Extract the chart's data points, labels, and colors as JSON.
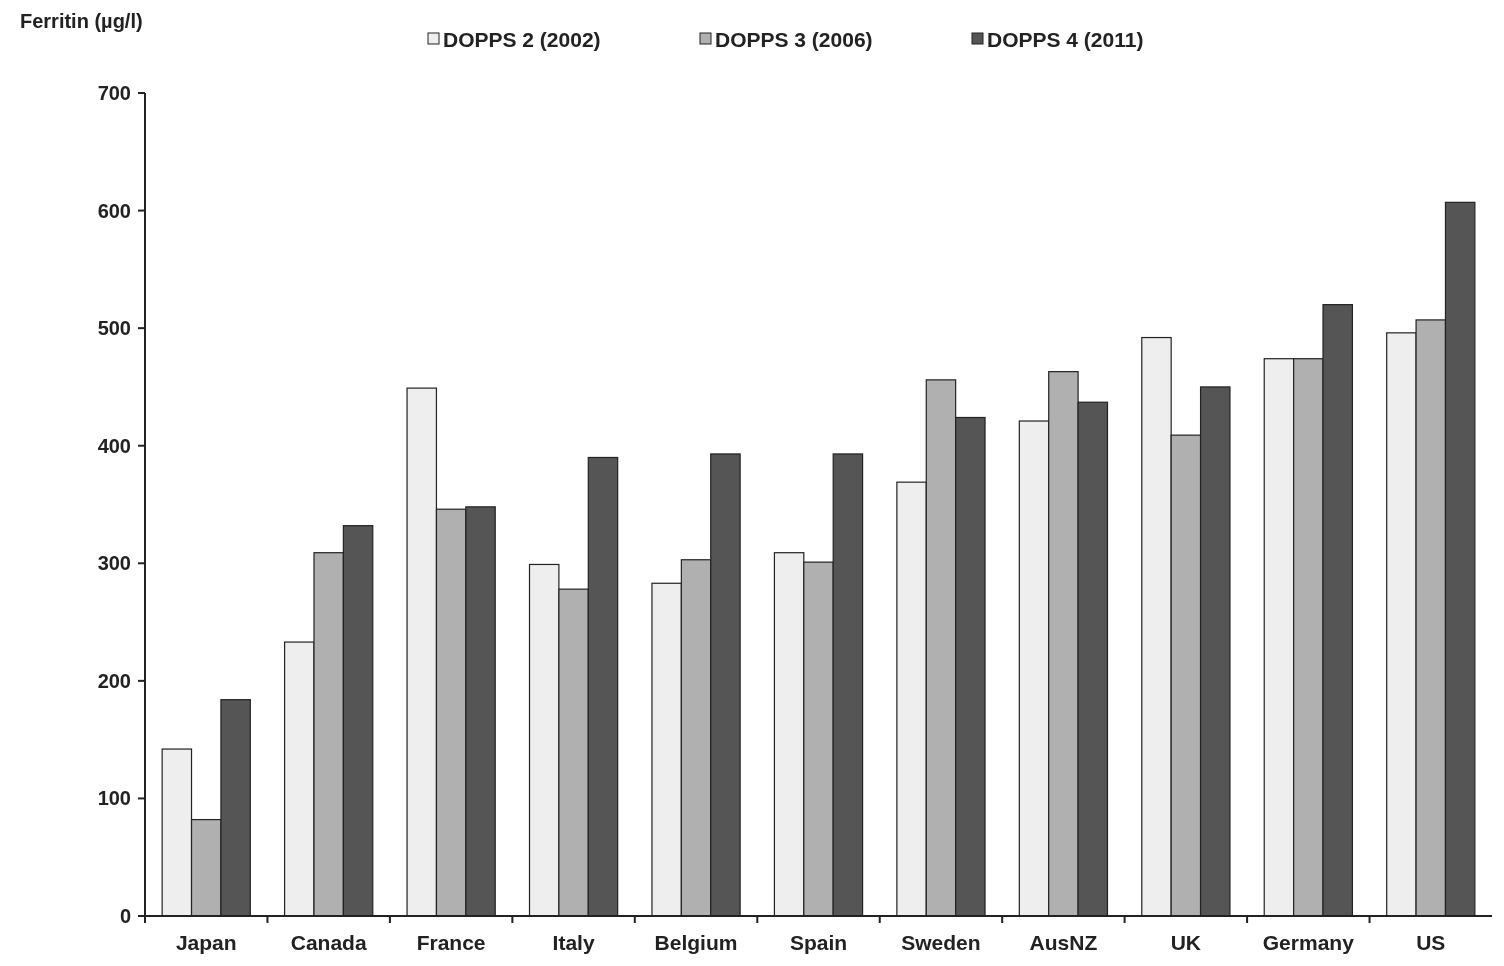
{
  "chart_data": {
    "type": "bar",
    "ylabel": "Ferritin (µg/l)",
    "categories": [
      "Japan",
      "Canada",
      "France",
      "Italy",
      "Belgium",
      "Spain",
      "Sweden",
      "AusNZ",
      "UK",
      "Germany",
      "US"
    ],
    "series": [
      {
        "name": "DOPPS 2 (2002)",
        "color": "#eeeeee",
        "values": [
          142,
          233,
          449,
          299,
          283,
          309,
          369,
          421,
          492,
          474,
          496
        ]
      },
      {
        "name": "DOPPS 3 (2006)",
        "color": "#b0b0b0",
        "values": [
          82,
          309,
          346,
          278,
          303,
          301,
          456,
          463,
          409,
          474,
          507
        ]
      },
      {
        "name": "DOPPS 4 (2011)",
        "color": "#555555",
        "values": [
          184,
          332,
          348,
          390,
          393,
          393,
          424,
          437,
          450,
          520,
          607
        ]
      }
    ],
    "ylim": [
      0,
      700
    ],
    "yticks": [
      0,
      100,
      200,
      300,
      400,
      500,
      600,
      700
    ],
    "grid": false,
    "legend": "top"
  }
}
